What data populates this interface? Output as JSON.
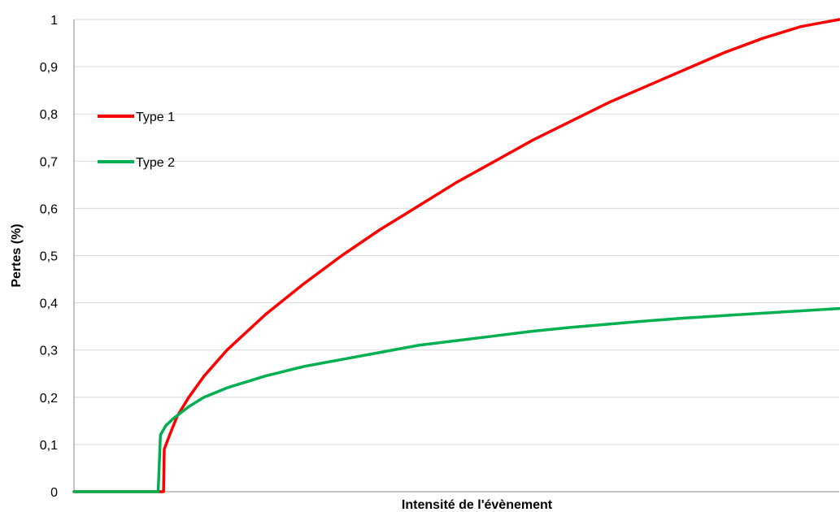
{
  "chart_data": {
    "type": "line",
    "title": "",
    "xlabel": "Intensité de l'évènement",
    "ylabel": "Pertes (%)",
    "ylim": [
      0,
      1
    ],
    "xlim": [
      0,
      100
    ],
    "x_tick_labels": "none",
    "y_ticks": [
      {
        "value": 0,
        "label": "0"
      },
      {
        "value": 0.1,
        "label": "0,1"
      },
      {
        "value": 0.2,
        "label": "0,2"
      },
      {
        "value": 0.3,
        "label": "0,3"
      },
      {
        "value": 0.4,
        "label": "0,4"
      },
      {
        "value": 0.5,
        "label": "0,5"
      },
      {
        "value": 0.6,
        "label": "0,6"
      },
      {
        "value": 0.7,
        "label": "0,7"
      },
      {
        "value": 0.8,
        "label": "0,8"
      },
      {
        "value": 0.9,
        "label": "0,9"
      },
      {
        "value": 1,
        "label": "1"
      }
    ],
    "grid": "horizontal",
    "legend_position": "top-left",
    "series": [
      {
        "name": "Type 1",
        "color": "#ff0000",
        "points": [
          [
            0,
            0
          ],
          [
            11.5,
            0
          ],
          [
            11.7,
            0
          ],
          [
            11.8,
            0.09
          ],
          [
            12.5,
            0.12
          ],
          [
            13.5,
            0.16
          ],
          [
            15,
            0.2
          ],
          [
            17,
            0.245
          ],
          [
            20,
            0.3
          ],
          [
            25,
            0.375
          ],
          [
            30,
            0.44
          ],
          [
            35,
            0.5
          ],
          [
            40,
            0.555
          ],
          [
            45,
            0.605
          ],
          [
            50,
            0.655
          ],
          [
            55,
            0.7
          ],
          [
            60,
            0.745
          ],
          [
            65,
            0.785
          ],
          [
            70,
            0.825
          ],
          [
            75,
            0.86
          ],
          [
            80,
            0.895
          ],
          [
            85,
            0.93
          ],
          [
            90,
            0.96
          ],
          [
            95,
            0.985
          ],
          [
            100,
            1.0
          ]
        ]
      },
      {
        "name": "Type 2",
        "color": "#00b050",
        "points": [
          [
            0,
            0
          ],
          [
            11,
            0
          ],
          [
            11.3,
            0.12
          ],
          [
            12,
            0.14
          ],
          [
            13,
            0.155
          ],
          [
            15,
            0.18
          ],
          [
            17,
            0.2
          ],
          [
            20,
            0.22
          ],
          [
            25,
            0.245
          ],
          [
            30,
            0.265
          ],
          [
            35,
            0.28
          ],
          [
            40,
            0.295
          ],
          [
            45,
            0.31
          ],
          [
            50,
            0.32
          ],
          [
            55,
            0.33
          ],
          [
            60,
            0.34
          ],
          [
            65,
            0.348
          ],
          [
            70,
            0.355
          ],
          [
            75,
            0.362
          ],
          [
            80,
            0.368
          ],
          [
            85,
            0.373
          ],
          [
            90,
            0.378
          ],
          [
            95,
            0.383
          ],
          [
            100,
            0.388
          ]
        ]
      }
    ]
  }
}
